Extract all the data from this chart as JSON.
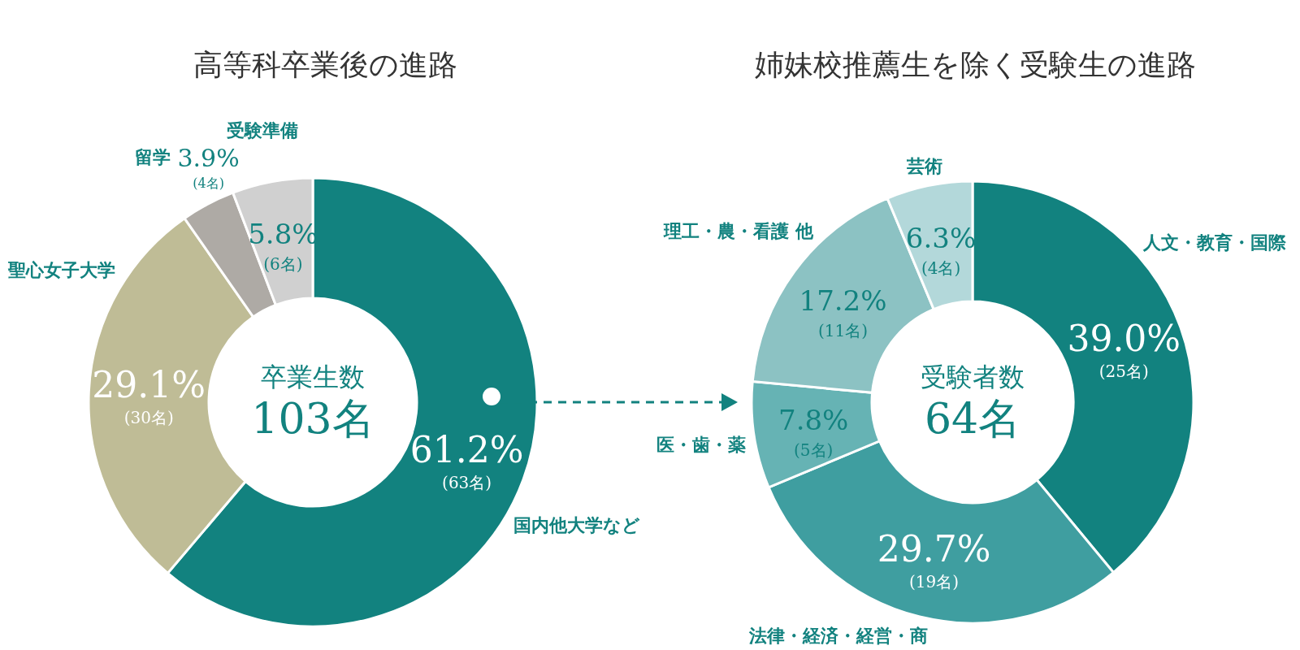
{
  "chart_data": [
    {
      "type": "donut",
      "title": "高等科卒業後の進路",
      "categories": [
        "国内他大学など",
        "聖心女子大学",
        "留学",
        "受験準備"
      ],
      "values": [
        61.2,
        29.1,
        3.9,
        5.8
      ],
      "colors": [
        "#12827f",
        "#bfbc96",
        "#aeaaa5",
        "#d0d0d0"
      ],
      "value_labels": [
        "61.2%\n(63名)",
        "29.1%\n(30名)",
        "3.9%\n(4名)",
        "5.8%\n(6名)"
      ],
      "annotations": [
        "卒業生数",
        "103名"
      ]
    },
    {
      "type": "donut",
      "title": "姉妹校推薦生を除く受験生の進路",
      "categories": [
        "人文・教育・国際",
        "法律・経済・経営・商",
        "医・歯・薬",
        "理工・農・看護 他",
        "芸術"
      ],
      "values": [
        39.0,
        29.7,
        7.8,
        17.2,
        6.3
      ],
      "colors": [
        "#12827f",
        "#3f9ea0",
        "#66b3b4",
        "#8cc2c3",
        "#b3d8da"
      ],
      "value_labels": [
        "39.0%\n(25名)",
        "29.7%\n(19名)",
        "7.8%\n(5名)",
        "17.2%\n(11名)",
        "6.3%\n(4名)"
      ],
      "annotations": [
        "受験者数",
        "64名"
      ]
    }
  ]
}
